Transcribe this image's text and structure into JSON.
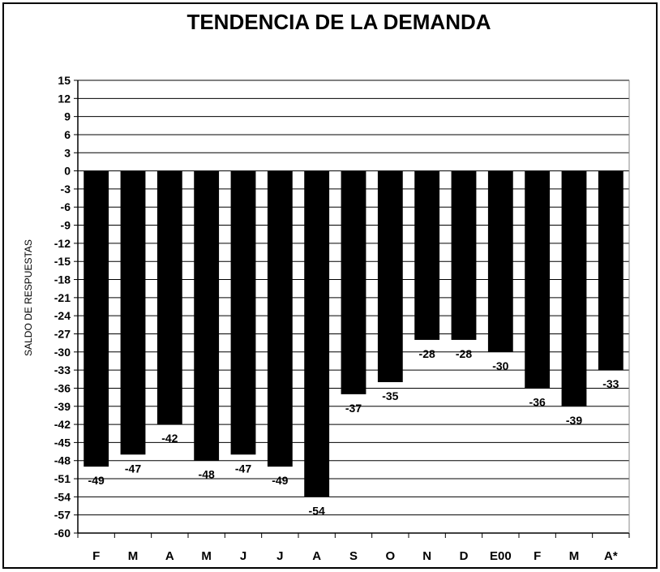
{
  "chart_data": {
    "type": "bar",
    "title": "TENDENCIA DE LA DEMANDA",
    "xlabel": "",
    "ylabel": "SALDO DE RESPUESTAS",
    "categories": [
      "F",
      "M",
      "A",
      "M",
      "J",
      "J",
      "A",
      "S",
      "O",
      "N",
      "D",
      "E00",
      "F",
      "M",
      "A*"
    ],
    "values": [
      -49,
      -47,
      -42,
      -48,
      -47,
      -49,
      -54,
      -37,
      -35,
      -28,
      -28,
      -30,
      -36,
      -39,
      -33
    ],
    "ylim": [
      -60,
      15
    ],
    "yticks": [
      15,
      12,
      9,
      6,
      3,
      0,
      -3,
      -6,
      -9,
      -12,
      -15,
      -18,
      -21,
      -24,
      -27,
      -30,
      -33,
      -36,
      -39,
      -42,
      -45,
      -48,
      -51,
      -54,
      -57,
      -60
    ],
    "grid": true,
    "legend": "none",
    "colors": {
      "bar": "#000000",
      "grid": "#000000",
      "text": "#000000",
      "background": "#ffffff"
    }
  }
}
